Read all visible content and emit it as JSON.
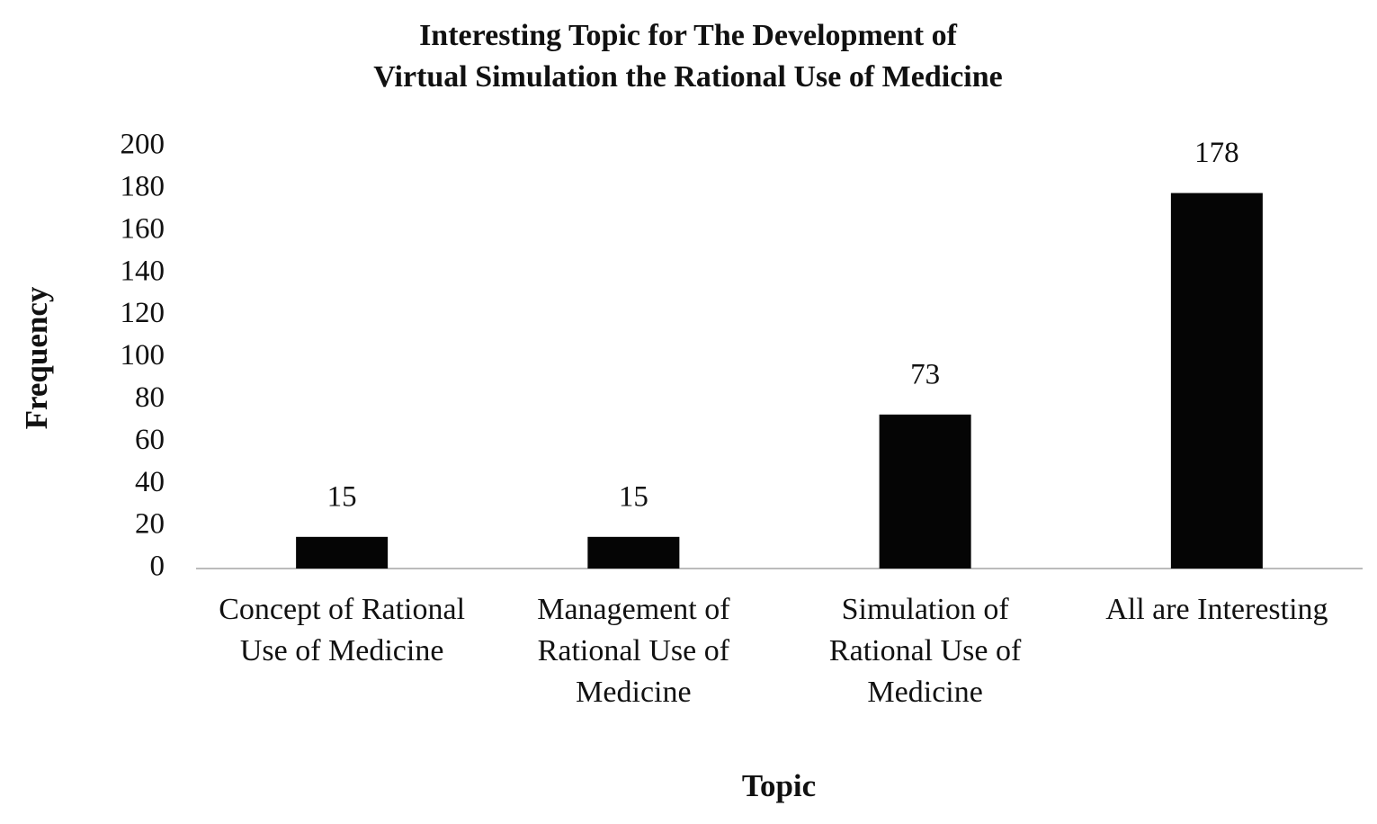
{
  "chart_data": {
    "type": "bar",
    "title": [
      "Interesting Topic for The Development of",
      "Virtual Simulation the Rational Use of Medicine"
    ],
    "x_label": "Topic",
    "y_label": "Frequency",
    "categories": [
      [
        "Concept of Rational",
        "Use of Medicine"
      ],
      [
        "Management of",
        "Rational Use of",
        "Medicine"
      ],
      [
        "Simulation of",
        "Rational Use of",
        "Medicine"
      ],
      [
        "All are Interesting"
      ]
    ],
    "values": [
      15,
      15,
      73,
      178
    ],
    "color": "#050505",
    "ylim": [
      0,
      200
    ],
    "yticks": [
      0,
      20,
      40,
      60,
      80,
      100,
      120,
      140,
      160,
      180,
      200
    ],
    "grid": false
  }
}
